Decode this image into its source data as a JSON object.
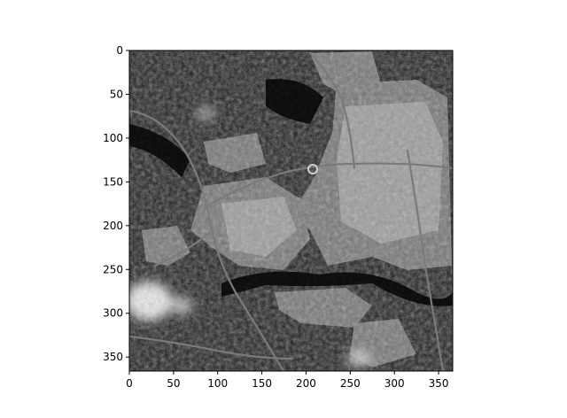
{
  "figure": {
    "type": "image-plot",
    "colormap": "gray",
    "x_ticks": [
      "0",
      "50",
      "100",
      "150",
      "200",
      "250",
      "300",
      "350"
    ],
    "y_ticks": [
      "0",
      "50",
      "100",
      "150",
      "200",
      "250",
      "300",
      "350"
    ],
    "x_range": [
      0,
      366
    ],
    "y_range": [
      0,
      366
    ],
    "y_inverted": true
  },
  "colors": {
    "background": "#ffffff",
    "image_base": "#0b0b0b",
    "urban": "#bdbdbd",
    "road": "#7a7a7a",
    "cloud": "#e8e8e8",
    "axis": "#000000"
  }
}
